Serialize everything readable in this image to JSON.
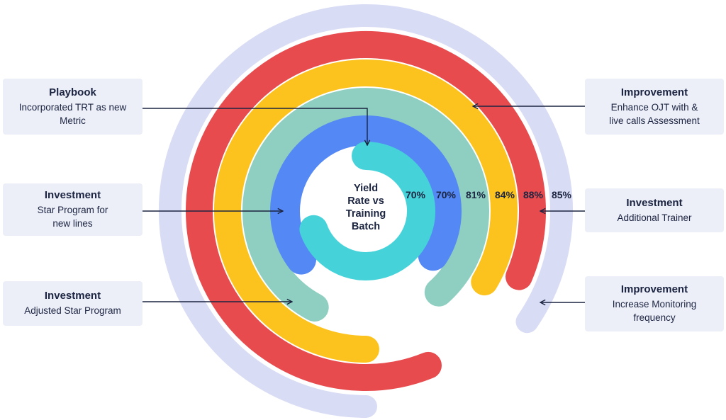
{
  "chart_data": {
    "type": "radial-bar",
    "center_label": "Yield\nRate vs\nTraining\nBatch",
    "values": [
      70,
      70,
      81,
      84,
      88,
      85
    ],
    "value_labels": [
      "70%",
      "70%",
      "81%",
      "84%",
      "88%",
      "85%"
    ],
    "colors": [
      "#45d3d9",
      "#5488f5",
      "#8fcfc2",
      "#fcc31f",
      "#e84b4e",
      "#d8dcf4"
    ]
  },
  "annotations": [
    {
      "title": "Playbook",
      "text": "Incorporated TRT as new\nMetric"
    },
    {
      "title": "Investment",
      "text": "Star Program for\nnew lines"
    },
    {
      "title": "Investment",
      "text": "Adjusted Star Program"
    },
    {
      "title": "Improvement",
      "text": "Enhance OJT with &\nlive calls Assessment"
    },
    {
      "title": "Investment",
      "text": "Additional Trainer"
    },
    {
      "title": "Improvement",
      "text": "Increase Monitoring\nfrequency"
    }
  ]
}
